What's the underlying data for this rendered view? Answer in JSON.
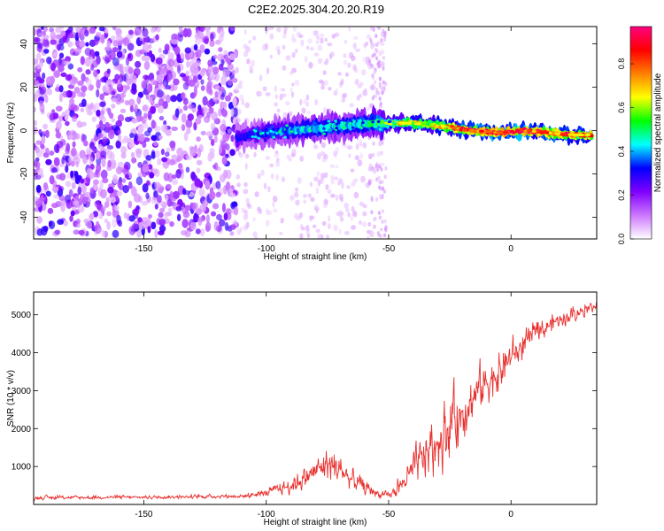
{
  "title": "C2E2.2025.304.20.20.R19",
  "chart_data": [
    {
      "type": "heatmap",
      "xlabel": "Height of straight line (km)",
      "ylabel": "Frequency (Hz)",
      "xlim": [
        -195,
        35
      ],
      "ylim": [
        -50,
        48
      ],
      "x_ticks": [
        -150,
        -100,
        -50,
        0
      ],
      "y_ticks": [
        -40,
        -20,
        0,
        20,
        40
      ],
      "colorbar": {
        "label": "Normalized spectral amplitude",
        "range": [
          0,
          0.97
        ],
        "ticks": [
          0.0,
          0.2,
          0.4,
          0.6,
          0.8
        ],
        "colormap": [
          "#ffffff",
          "#cc77ff",
          "#8000ff",
          "#0000ff",
          "#00ffff",
          "#00ff00",
          "#ffff00",
          "#ff8000",
          "#ff0000",
          "#ff0080"
        ]
      },
      "ridge": {
        "x": [
          -112,
          -100,
          -90,
          -80,
          -70,
          -60,
          -52,
          -45,
          -35,
          -25,
          -15,
          -5,
          5,
          15,
          25,
          33
        ],
        "freq": [
          -3,
          -1,
          0,
          1,
          2,
          3,
          3.5,
          3.5,
          3,
          1.5,
          0,
          -1,
          0,
          -1,
          -2,
          -2
        ],
        "peak_amplitude": [
          0.3,
          0.35,
          0.4,
          0.45,
          0.45,
          0.45,
          0.6,
          0.7,
          0.7,
          0.8,
          0.9,
          0.95,
          0.95,
          0.9,
          0.85,
          0.8
        ]
      },
      "noise_region": {
        "x": [
          -195,
          -112
        ],
        "freq": [
          -48,
          48
        ],
        "amplitude": [
          0.05,
          0.3
        ]
      }
    },
    {
      "type": "line",
      "xlabel": "Height of straight line (km)",
      "ylabel": "SNR (10 * v/v)",
      "xlim": [
        -195,
        35
      ],
      "ylim": [
        0,
        5600
      ],
      "x_ticks": [
        -150,
        -100,
        -50,
        0
      ],
      "y_ticks": [
        1000,
        2000,
        3000,
        4000,
        5000
      ],
      "color": "#e8302e",
      "envelope": {
        "x": [
          -195,
          -150,
          -110,
          -100,
          -90,
          -80,
          -75,
          -70,
          -65,
          -60,
          -55,
          -50,
          -45,
          -40,
          -35,
          -30,
          -25,
          -20,
          -15,
          -10,
          -5,
          0,
          5,
          10,
          15,
          20,
          25,
          30,
          35
        ],
        "mean": [
          180,
          190,
          220,
          300,
          500,
          850,
          1100,
          900,
          650,
          450,
          300,
          220,
          500,
          900,
          1300,
          1700,
          2100,
          2500,
          2900,
          3200,
          3500,
          3900,
          4200,
          4500,
          4700,
          4900,
          5000,
          5150,
          5250
        ],
        "spread": [
          90,
          90,
          100,
          180,
          400,
          700,
          900,
          800,
          550,
          350,
          200,
          150,
          500,
          900,
          1200,
          1500,
          1500,
          1400,
          1300,
          1100,
          1000,
          900,
          700,
          550,
          450,
          400,
          350,
          300,
          250
        ]
      }
    }
  ]
}
